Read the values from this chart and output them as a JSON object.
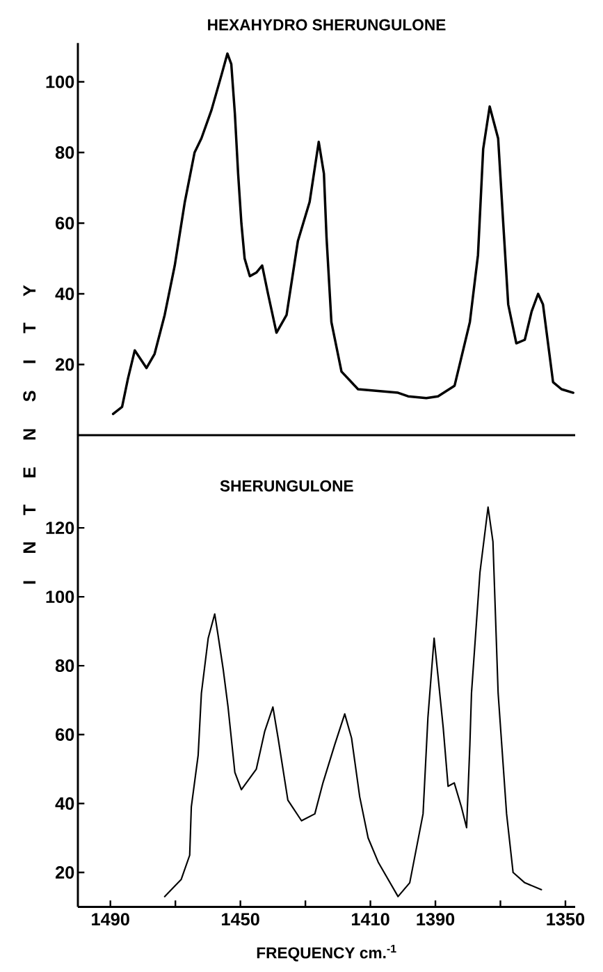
{
  "chart_data": [
    {
      "type": "line",
      "title": "HEXAHYDRO SHERUNGULONE",
      "xlim": [
        1500,
        1347
      ],
      "ylim": [
        0,
        111
      ],
      "yticks": [
        20,
        40,
        60,
        80,
        100
      ],
      "tick_labels": "y",
      "marker": "none",
      "line_style": "solid",
      "x": [
        1489.2,
        1486.4,
        1484.6,
        1482.5,
        1478.9,
        1476.4,
        1473.3,
        1470.2,
        1467.1,
        1464.1,
        1462.0,
        1458.9,
        1455.8,
        1454.0,
        1452.8,
        1451.7,
        1450.7,
        1449.7,
        1448.7,
        1447.1,
        1445.1,
        1443.3,
        1441.5,
        1438.9,
        1435.8,
        1432.3,
        1428.7,
        1425.9,
        1424.3,
        1423.5,
        1422.0,
        1418.9,
        1413.8,
        1401.5,
        1398.4,
        1392.8,
        1389.2,
        1384.1,
        1379.4,
        1376.9,
        1375.3,
        1373.3,
        1370.7,
        1369.2,
        1367.6,
        1365.1,
        1362.5,
        1360.4,
        1358.4,
        1356.9,
        1353.8,
        1351.2,
        1347.6
      ],
      "series": [
        {
          "color": "#000000",
          "values": [
            6,
            8,
            16,
            24,
            19,
            23,
            34,
            48,
            66,
            80,
            84,
            92,
            102,
            108,
            105,
            91,
            74,
            60,
            50,
            45,
            46,
            48,
            40,
            29,
            34,
            55,
            66,
            83,
            74,
            56,
            32,
            18,
            13,
            12,
            11,
            10.5,
            11,
            14,
            32,
            51,
            81,
            93,
            84,
            61,
            37,
            26,
            27,
            35,
            40,
            37,
            15,
            13,
            12
          ]
        }
      ]
    },
    {
      "type": "line",
      "title": "SHERUNGULONE",
      "xlabel": "FREQUENCY cm.$^{-1}$",
      "ylabel": "I N T E N S I T Y",
      "xlim": [
        1500,
        1347
      ],
      "ylim": [
        10,
        147
      ],
      "yticks": [
        20,
        40,
        60,
        80,
        100,
        120
      ],
      "xticks": [
        1490,
        {
          "value": 1470,
          "label": null
        },
        1450,
        {
          "value": 1430,
          "label": null
        },
        1410,
        1390,
        {
          "value": 1370,
          "label": null
        },
        1350
      ],
      "marker": "none",
      "line_style": "solid",
      "x": [
        1473.3,
        1468.2,
        1465.6,
        1465.1,
        1463.0,
        1462.0,
        1459.9,
        1457.9,
        1456.9,
        1455.3,
        1453.8,
        1451.7,
        1449.7,
        1445.1,
        1442.5,
        1440.0,
        1438.4,
        1435.4,
        1431.2,
        1427.1,
        1424.6,
        1421.0,
        1417.9,
        1415.8,
        1413.3,
        1410.7,
        1407.6,
        1401.5,
        1397.9,
        1393.8,
        1392.3,
        1390.4,
        1389.2,
        1387.6,
        1386.1,
        1384.2,
        1382.0,
        1380.4,
        1379.4,
        1378.9,
        1376.3,
        1373.8,
        1372.3,
        1370.7,
        1368.1,
        1366.1,
        1362.5,
        1357.4
      ],
      "series": [
        {
          "color": "#000000",
          "values": [
            13,
            18,
            25,
            39,
            54,
            72,
            88,
            95,
            89,
            79,
            68,
            49,
            44,
            50,
            61,
            68,
            59,
            41,
            35,
            37,
            46,
            57,
            66,
            59,
            42,
            30,
            23,
            13,
            17,
            37,
            65,
            88,
            77,
            62,
            45,
            46,
            39,
            33,
            57,
            72,
            107,
            126,
            116,
            72,
            37,
            20,
            17,
            15
          ]
        }
      ]
    }
  ]
}
